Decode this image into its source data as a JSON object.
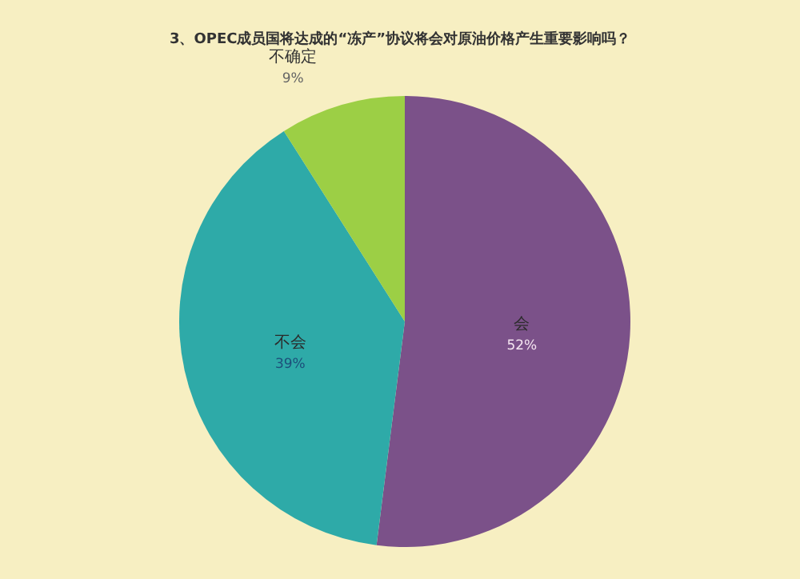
{
  "chart_data": {
    "type": "pie",
    "title": "3、OPEC成员国将达成的“冻产”协议将会对原油价格产生重要影响吗？",
    "categories": [
      "会",
      "不会",
      "不确定"
    ],
    "values": [
      52,
      39,
      9
    ],
    "value_labels": [
      "52%",
      "39%",
      "9%"
    ],
    "colors": [
      "#7b5189",
      "#2eaaa8",
      "#9ccf45"
    ]
  }
}
